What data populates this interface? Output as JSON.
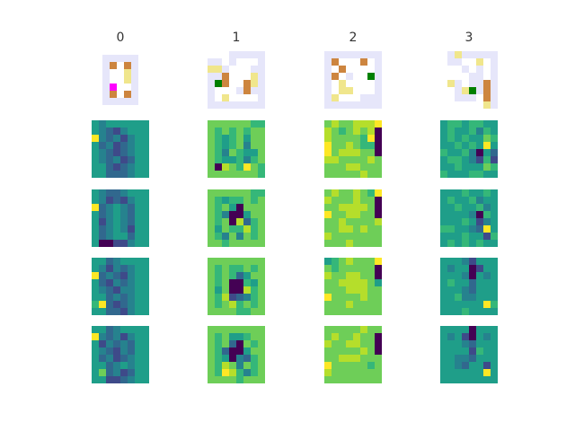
{
  "panels": {
    "titles": [
      "0",
      "1",
      "2",
      "3"
    ],
    "map_palette": {
      "w": "#ffffff",
      "l": "#e6e6fa",
      "t": "#cd853f",
      "k": "#f0e68c",
      "g": "#008000",
      "m": "#ff00ff"
    },
    "heat_palette": {
      "a": "#440154",
      "b": "#3e4a89",
      "c": "#31688e",
      "d": "#26828e",
      "e": "#1f9e89",
      "f": "#35b779",
      "g": "#6ece58",
      "h": "#b5de2b",
      "i": "#fde725"
    },
    "maps": [
      [
        "lllll",
        "ltwtl",
        "lwwkl",
        "lwwkl",
        "lmwwl",
        "ltwtl",
        "lllll"
      ],
      [
        "wwwlllll",
        "llwlwwwl",
        "kklwwwll",
        "lltwwwkl",
        "lgtwwtkl",
        "lwwwltll",
        "lwkwwwwl",
        "llllllll"
      ],
      [
        "llllllll",
        "ltwwwtwl",
        "lwtwwwwl",
        "ltwlwwgl",
        "lwkwwwwl",
        "lwkkwwwl",
        "lkwwwlll",
        "llllllll"
      ],
      [
        "wlklllll",
        "wllwwkwl",
        "wwwlwlwl",
        "wwwwllwl",
        "wklwlltl",
        "wwlkgltl",
        "wwlllwtl",
        "wwwwwwkl"
      ]
    ],
    "heatmaps": [
      [
        [
          "edeeeeee",
          "edcbdeee",
          "idcdbdee",
          "ecdbcdee",
          "edcbcdee",
          "edcdbcee",
          "eecbcdee",
          "eecccdee"
        ],
        [
          "edccdeee",
          "edbcbdee",
          "icdedcee",
          "ecdedcee",
          "ebdedcee",
          "ecdedbee",
          "ecdeecee",
          "eaabbdee"
        ],
        [
          "eecdeeee",
          "edbdcdee",
          "icdcbdee",
          "ecbdcdee",
          "edcbddee",
          "eecdcdee",
          "ficbcdee",
          "eeccbdee"
        ],
        [
          "eecdeeee",
          "idcdbdee",
          "ebdcdcee",
          "edcbdcee",
          "ecdbcdee",
          "eecdedee",
          "egcdbcee",
          "eebbcdee"
        ]
      ],
      [
        [
          "ggggggff",
          "gfgfgfgg",
          "gfefgegg",
          "gfefgdgg",
          "gfdgfeeg",
          "gfeefdfg",
          "gahgfigf",
          "gggggggf"
        ],
        [
          "ggggggff",
          "gfeffgfg",
          "gfgeaggg",
          "gfdaaegg",
          "gfgahcfg",
          "gegffhfg",
          "gfdgdgfg",
          "ggfggggg"
        ],
        [
          "gggggggg",
          "gfgffgfg",
          "gfgfcegg",
          "gfgaafeg",
          "gegaahfg",
          "gfhbcdfg",
          "gfghfgfg",
          "ggggffgg"
        ],
        [
          "gggggggg",
          "gfgeefgg",
          "gfgcagfg",
          "gfcaaegg",
          "gfeadcfg",
          "gfhgdgfg",
          "gfihfdfg",
          "ggggfggg"
        ]
      ],
      [
        [
          "ghgghhhi",
          "hgfghgha",
          "hggggfia",
          "igghgffa",
          "ighhhgga",
          "hhgggghg",
          "ggghhggg",
          "ggggghgg"
        ],
        [
          "ghgghgfi",
          "hggghgga",
          "gghhhhga",
          "igghhgga",
          "gghggggh",
          "gghhghgg",
          "hggggggg",
          "ggghgggg"
        ],
        [
          "efghgggi",
          "gfggggga",
          "hgghhgga",
          "gghhhhge",
          "ggghhhgg",
          "igggghgg",
          "ggghgggg",
          "gggggggg"
        ],
        [
          "ggggghgg",
          "ghgghgga",
          "hgghhgga",
          "ggggghga",
          "gghhhggg",
          "igggggfg",
          "hggggggg",
          "gggggggg"
        ]
      ],
      [
        [
          "effeffee",
          "efeefdfe",
          "efefeegf",
          "eefefeie",
          "feefdaec",
          "effedbfb",
          "eefeeegf",
          "feeeffee"
        ],
        [
          "eeefeefe",
          "efeefdee",
          "eefeefde",
          "eeeedafe",
          "eeefebde",
          "ffeedcie",
          "eeefeebf",
          "efefefee"
        ],
        [
          "eeedbeee",
          "edeeabee",
          "eeedaede",
          "efeeceee",
          "eeedceee",
          "eefddeee",
          "eeeeeeif",
          "eeefeeee"
        ],
        [
          "eeeeaeee",
          "edebaede",
          "eeedceee",
          "eeeebfee",
          "eeddceee",
          "eedceebe",
          "eeeeeeie",
          "eeeeeeee"
        ]
      ]
    ]
  }
}
